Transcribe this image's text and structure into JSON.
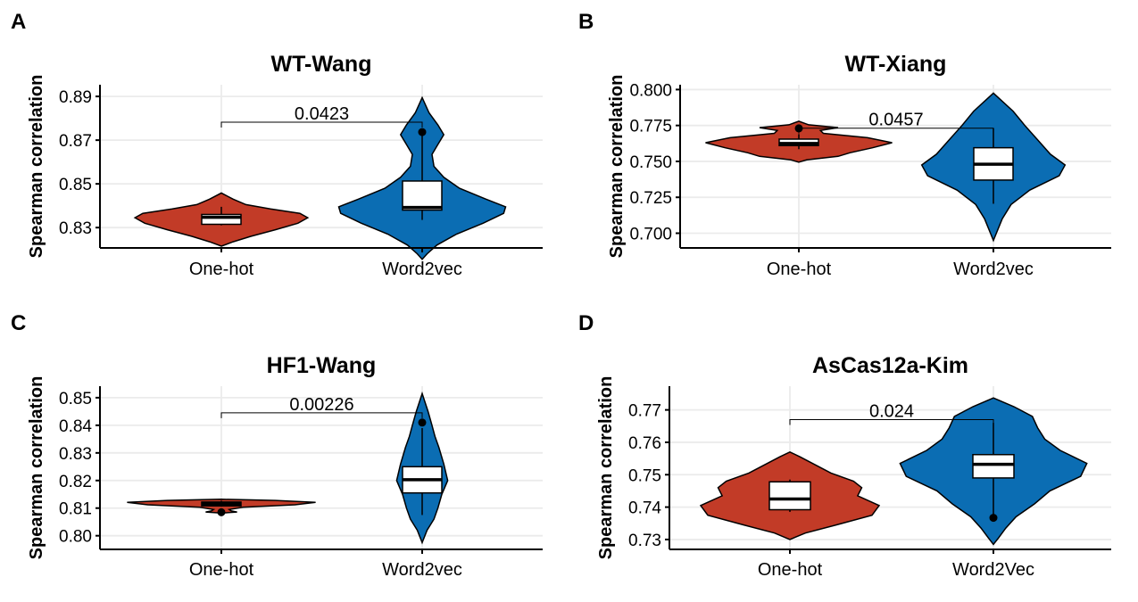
{
  "colors": {
    "group1": "#c23b27",
    "group2": "#0b6db3"
  },
  "chart_data": [
    {
      "panel": "A",
      "type": "violin",
      "title": "WT-Wang",
      "xlabel": "",
      "ylabel": "Spearman correlation",
      "ylim": [
        0.8215,
        0.8925
      ],
      "yticks": [
        0.83,
        0.85,
        0.87,
        0.89
      ],
      "tick_labels": [
        "0.83",
        "0.85",
        "0.87",
        "0.89"
      ],
      "categories": [
        "One-hot",
        "Word2vec"
      ],
      "series": [
        {
          "violin": {
            "ymin": 0.8215,
            "ymax": 0.8458,
            "widths": [
              [
                0.8215,
                0
              ],
              [
                0.8235,
                0.12
              ],
              [
                0.826,
                0.3
              ],
              [
                0.829,
                0.55
              ],
              [
                0.832,
                0.78
              ],
              [
                0.8345,
                0.88
              ],
              [
                0.8365,
                0.8
              ],
              [
                0.8385,
                0.5
              ],
              [
                0.8405,
                0.25
              ],
              [
                0.843,
                0.12
              ],
              [
                0.8458,
                0
              ]
            ]
          },
          "box": {
            "lower_whisker": 0.831,
            "q1": 0.8315,
            "median": 0.8347,
            "q3": 0.836,
            "upper_whisker": 0.8395
          },
          "outliers": []
        },
        {
          "violin": {
            "ymin": 0.8155,
            "ymax": 0.8895,
            "widths": [
              [
                0.8155,
                0
              ],
              [
                0.818,
                0.05
              ],
              [
                0.822,
                0.15
              ],
              [
                0.827,
                0.35
              ],
              [
                0.832,
                0.62
              ],
              [
                0.8365,
                0.83
              ],
              [
                0.8395,
                0.85
              ],
              [
                0.843,
                0.65
              ],
              [
                0.848,
                0.38
              ],
              [
                0.853,
                0.22
              ],
              [
                0.858,
                0.12
              ],
              [
                0.8635,
                0.1
              ],
              [
                0.868,
                0.16
              ],
              [
                0.8725,
                0.22
              ],
              [
                0.877,
                0.16
              ],
              [
                0.8825,
                0.07
              ],
              [
                0.8895,
                0
              ]
            ]
          },
          "box": {
            "lower_whisker": 0.8335,
            "q1": 0.838,
            "median": 0.8392,
            "q3": 0.8513,
            "upper_whisker": 0.8735
          },
          "outliers": [
            0.8737
          ]
        }
      ],
      "comparison": {
        "label": "0.0423",
        "y": 0.8782
      }
    },
    {
      "panel": "B",
      "type": "violin",
      "title": "WT-Xiang",
      "xlabel": "",
      "ylabel": "Spearman correlation",
      "ylim": [
        0.691,
        0.8015
      ],
      "yticks": [
        0.7,
        0.725,
        0.75,
        0.775,
        0.8
      ],
      "tick_labels": [
        "0.700",
        "0.725",
        "0.750",
        "0.775",
        "0.800"
      ],
      "categories": [
        "One-hot",
        "Word2vec"
      ],
      "series": [
        {
          "violin": {
            "ymin": 0.7495,
            "ymax": 0.778,
            "widths": [
              [
                0.7495,
                0
              ],
              [
                0.751,
                0.08
              ],
              [
                0.7535,
                0.4
              ],
              [
                0.756,
                0.52
              ],
              [
                0.7595,
                0.75
              ],
              [
                0.763,
                0.95
              ],
              [
                0.7665,
                0.7
              ],
              [
                0.7695,
                0.25
              ],
              [
                0.7715,
                0.22
              ],
              [
                0.7735,
                0.4
              ],
              [
                0.7755,
                0.1
              ],
              [
                0.778,
                0
              ]
            ]
          },
          "box": {
            "lower_whisker": 0.7585,
            "q1": 0.761,
            "median": 0.7625,
            "q3": 0.7655,
            "upper_whisker": 0.769
          },
          "outliers": [
            0.773
          ]
        },
        {
          "violin": {
            "ymin": 0.695,
            "ymax": 0.7975,
            "widths": [
              [
                0.695,
                0
              ],
              [
                0.7,
                0.03
              ],
              [
                0.71,
                0.09
              ],
              [
                0.72,
                0.18
              ],
              [
                0.73,
                0.37
              ],
              [
                0.74,
                0.67
              ],
              [
                0.7475,
                0.73
              ],
              [
                0.755,
                0.58
              ],
              [
                0.765,
                0.45
              ],
              [
                0.775,
                0.32
              ],
              [
                0.785,
                0.2
              ],
              [
                0.7975,
                0
              ]
            ]
          },
          "box": {
            "lower_whisker": 0.7205,
            "q1": 0.737,
            "median": 0.748,
            "q3": 0.7595,
            "upper_whisker": 0.773
          },
          "outliers": []
        }
      ],
      "comparison": {
        "label": "0.0457",
        "y": 0.7731
      }
    },
    {
      "panel": "C",
      "type": "violin",
      "title": "HF1-Wang",
      "xlabel": "",
      "ylabel": "Spearman correlation",
      "ylim": [
        0.7957,
        0.8532
      ],
      "yticks": [
        0.8,
        0.81,
        0.82,
        0.83,
        0.84,
        0.85
      ],
      "tick_labels": [
        "0.80",
        "0.81",
        "0.82",
        "0.83",
        "0.84",
        "0.85"
      ],
      "categories": [
        "One-hot",
        "Word2vec"
      ],
      "series": [
        {
          "violin": {
            "ymin": 0.8082,
            "ymax": 0.8132,
            "widths": [
              [
                0.8082,
                0
              ],
              [
                0.8086,
                0.16
              ],
              [
                0.809,
                0.1
              ],
              [
                0.8095,
                0.08
              ],
              [
                0.8103,
                0.22
              ],
              [
                0.8112,
                0.75
              ],
              [
                0.8121,
                0.96
              ],
              [
                0.8128,
                0.55
              ],
              [
                0.8132,
                0
              ]
            ]
          },
          "box": {
            "lower_whisker": 0.8105,
            "q1": 0.8108,
            "median": 0.8115,
            "q3": 0.8122,
            "upper_whisker": 0.8127
          },
          "outliers": [
            0.8085
          ]
        },
        {
          "violin": {
            "ymin": 0.7975,
            "ymax": 0.8515,
            "widths": [
              [
                0.7975,
                0
              ],
              [
                0.802,
                0.05
              ],
              [
                0.806,
                0.12
              ],
              [
                0.81,
                0.16
              ],
              [
                0.815,
                0.2
              ],
              [
                0.82,
                0.26
              ],
              [
                0.826,
                0.22
              ],
              [
                0.832,
                0.17
              ],
              [
                0.836,
                0.13
              ],
              [
                0.84,
                0.1
              ],
              [
                0.845,
                0.06
              ],
              [
                0.8515,
                0
              ]
            ]
          },
          "box": {
            "lower_whisker": 0.8075,
            "q1": 0.8155,
            "median": 0.8203,
            "q3": 0.825,
            "upper_whisker": 0.839
          },
          "outliers": [
            0.841
          ]
        }
      ],
      "comparison": {
        "label": "0.00226",
        "y": 0.8445
      }
    },
    {
      "panel": "D",
      "type": "violin",
      "title": "AsCas12a-Kim",
      "xlabel": "",
      "ylabel": "Spearman correlation",
      "ylim": [
        0.7275,
        0.7765
      ],
      "yticks": [
        0.73,
        0.74,
        0.75,
        0.76,
        0.77
      ],
      "tick_labels": [
        "0.73",
        "0.74",
        "0.75",
        "0.76",
        "0.77"
      ],
      "categories": [
        "One-hot",
        "Word2Vec"
      ],
      "series": [
        {
          "violin": {
            "ymin": 0.73,
            "ymax": 0.757,
            "widths": [
              [
                0.73,
                0
              ],
              [
                0.732,
                0.15
              ],
              [
                0.7345,
                0.45
              ],
              [
                0.7375,
                0.8
              ],
              [
                0.7405,
                0.87
              ],
              [
                0.7435,
                0.66
              ],
              [
                0.746,
                0.7
              ],
              [
                0.748,
                0.62
              ],
              [
                0.7505,
                0.4
              ],
              [
                0.7535,
                0.22
              ],
              [
                0.7555,
                0.1
              ],
              [
                0.757,
                0
              ]
            ]
          },
          "box": {
            "lower_whisker": 0.7385,
            "q1": 0.7392,
            "median": 0.7425,
            "q3": 0.7478,
            "upper_whisker": 0.7485
          },
          "outliers": []
        },
        {
          "violin": {
            "ymin": 0.7285,
            "ymax": 0.7737,
            "widths": [
              [
                0.7285,
                0
              ],
              [
                0.7305,
                0.05
              ],
              [
                0.7335,
                0.12
              ],
              [
                0.737,
                0.22
              ],
              [
                0.741,
                0.4
              ],
              [
                0.745,
                0.55
              ],
              [
                0.7495,
                0.85
              ],
              [
                0.7535,
                0.91
              ],
              [
                0.7575,
                0.65
              ],
              [
                0.761,
                0.5
              ],
              [
                0.7645,
                0.43
              ],
              [
                0.768,
                0.38
              ],
              [
                0.771,
                0.2
              ],
              [
                0.7737,
                0
              ]
            ]
          },
          "box": {
            "lower_whisker": 0.7365,
            "q1": 0.749,
            "median": 0.7532,
            "q3": 0.7562,
            "upper_whisker": 0.766
          },
          "outliers": [
            0.7367
          ]
        }
      ],
      "comparison": {
        "label": "0.024",
        "y": 0.767
      }
    }
  ]
}
